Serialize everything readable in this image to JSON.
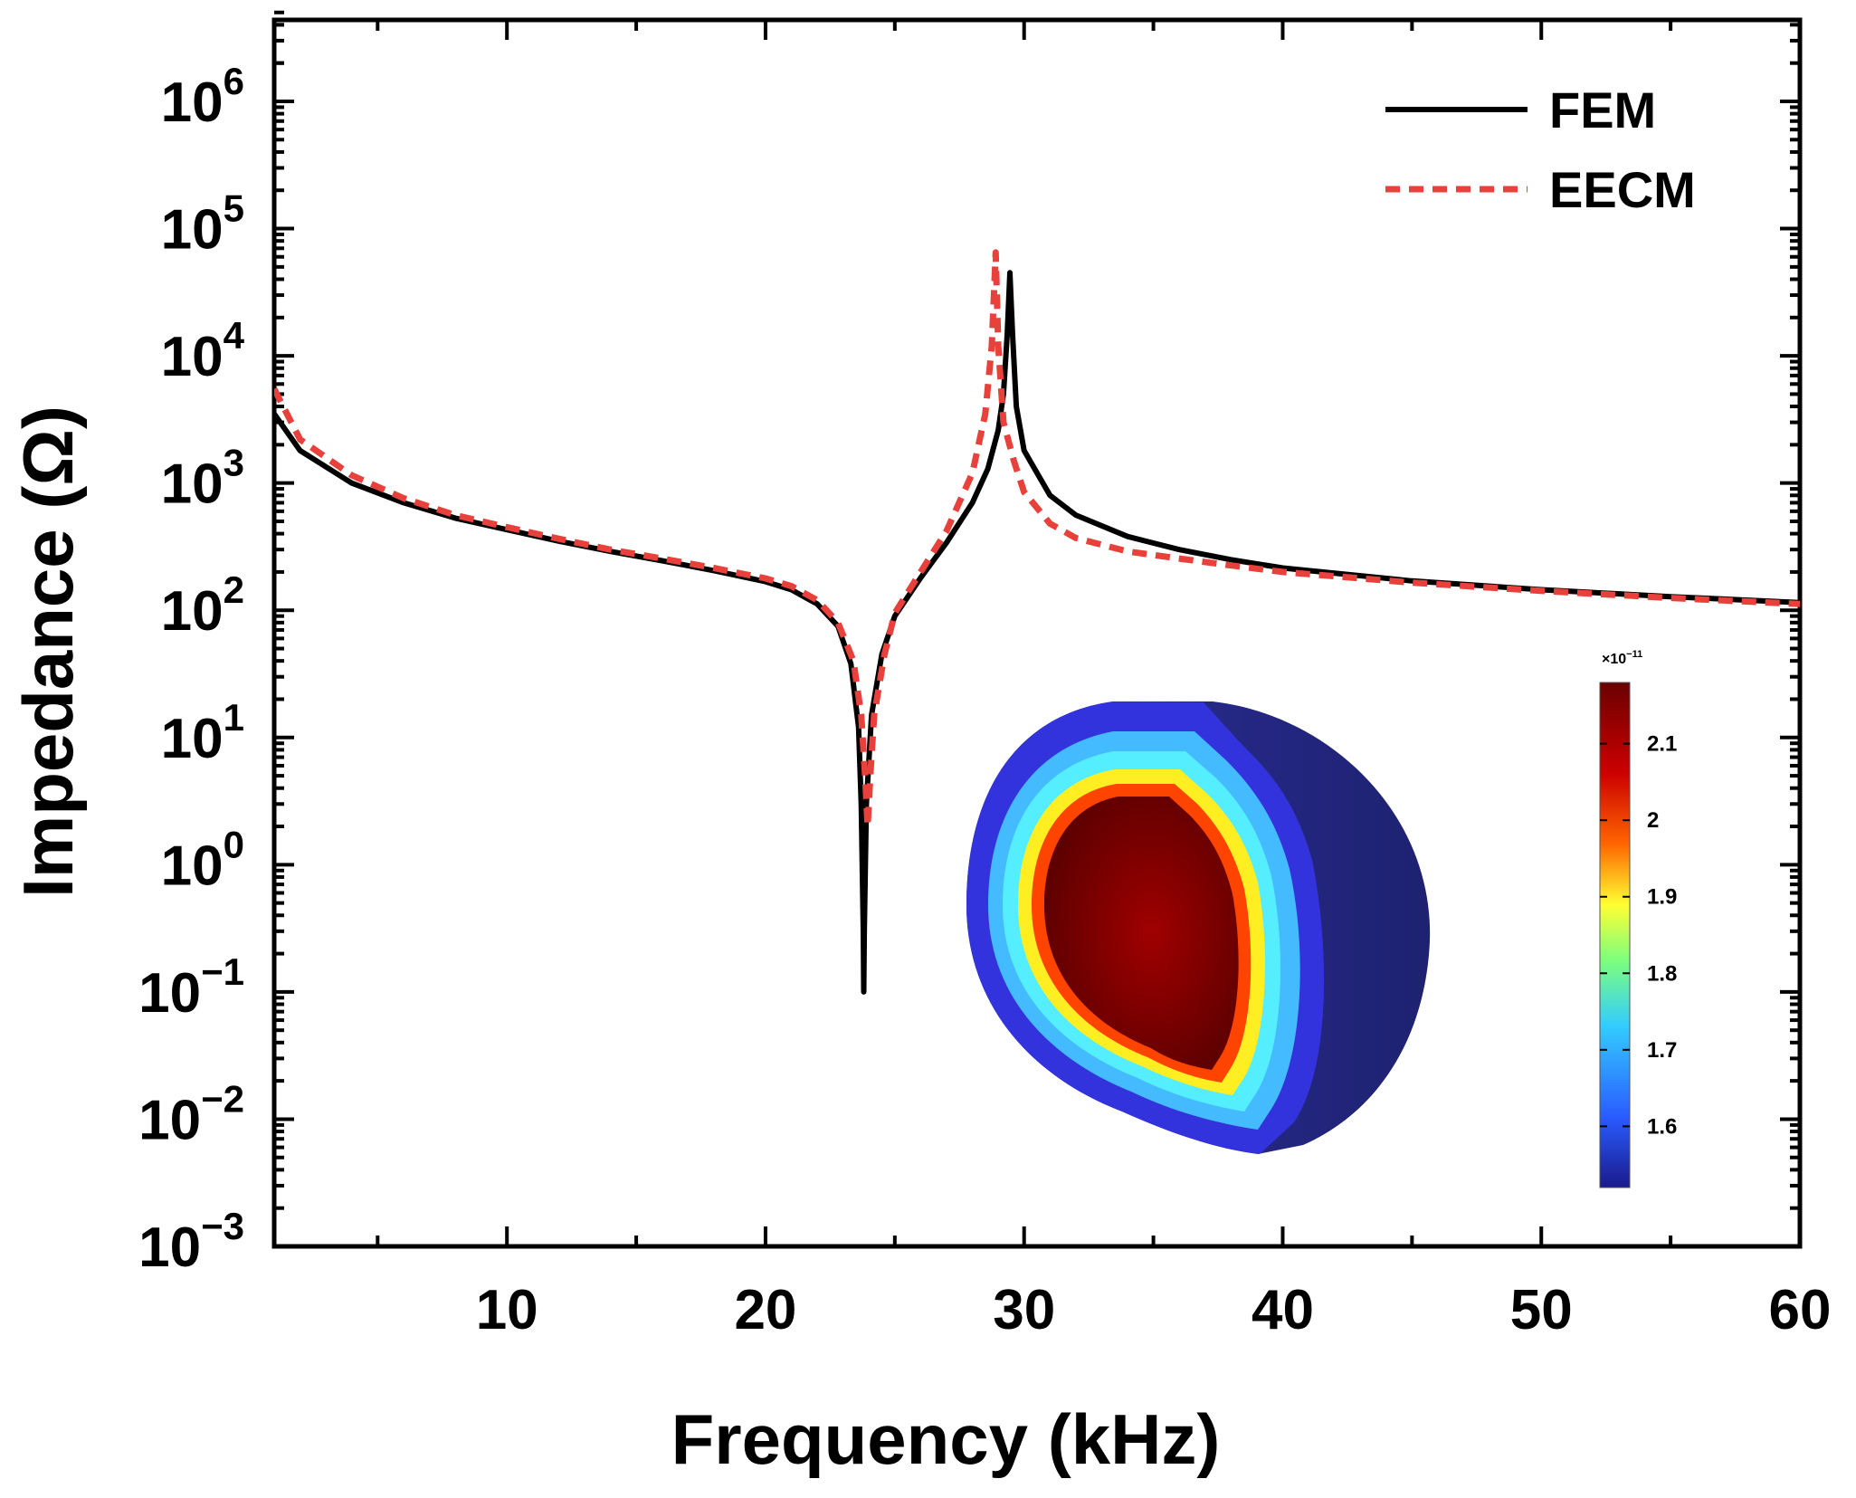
{
  "chart_data": {
    "type": "line",
    "xlabel": "Frequency (kHz)",
    "ylabel": "Impedance (Ω)",
    "xlim": [
      1,
      60
    ],
    "ylim": [
      0.001,
      5000000
    ],
    "y_scale": "log",
    "x_ticks": [
      10,
      20,
      30,
      40,
      50,
      60
    ],
    "y_ticks": [
      {
        "value": 0.001,
        "base": "10",
        "exp": "−3"
      },
      {
        "value": 0.01,
        "base": "10",
        "exp": "−2"
      },
      {
        "value": 0.1,
        "base": "10",
        "exp": "−1"
      },
      {
        "value": 1,
        "base": "10",
        "exp": "0"
      },
      {
        "value": 10,
        "base": "10",
        "exp": "1"
      },
      {
        "value": 100,
        "base": "10",
        "exp": "2"
      },
      {
        "value": 1000,
        "base": "10",
        "exp": "3"
      },
      {
        "value": 10000,
        "base": "10",
        "exp": "4"
      },
      {
        "value": 100000,
        "base": "10",
        "exp": "5"
      },
      {
        "value": 1000000,
        "base": "10",
        "exp": "6"
      }
    ],
    "legend_position": "top-right",
    "series": [
      {
        "name": "FEM",
        "color": "#000000",
        "style": "solid",
        "points": [
          [
            1,
            3500
          ],
          [
            2,
            1800
          ],
          [
            4,
            1000
          ],
          [
            6,
            700
          ],
          [
            8,
            530
          ],
          [
            10,
            430
          ],
          [
            12,
            350
          ],
          [
            14,
            290
          ],
          [
            16,
            245
          ],
          [
            18,
            205
          ],
          [
            20,
            168
          ],
          [
            21,
            145
          ],
          [
            22,
            112
          ],
          [
            22.8,
            75
          ],
          [
            23.3,
            38
          ],
          [
            23.6,
            12
          ],
          [
            23.7,
            3
          ],
          [
            23.78,
            0.3
          ],
          [
            23.8,
            0.1
          ],
          [
            23.82,
            0.3
          ],
          [
            23.9,
            3
          ],
          [
            24.1,
            15
          ],
          [
            24.5,
            45
          ],
          [
            25,
            90
          ],
          [
            26,
            180
          ],
          [
            27,
            340
          ],
          [
            28,
            700
          ],
          [
            28.6,
            1300
          ],
          [
            29,
            2600
          ],
          [
            29.2,
            5000
          ],
          [
            29.35,
            15000
          ],
          [
            29.45,
            45000
          ],
          [
            29.55,
            15000
          ],
          [
            29.7,
            4000
          ],
          [
            30,
            1800
          ],
          [
            31,
            800
          ],
          [
            32,
            560
          ],
          [
            34,
            380
          ],
          [
            36,
            300
          ],
          [
            38,
            250
          ],
          [
            40,
            215
          ],
          [
            45,
            170
          ],
          [
            50,
            145
          ],
          [
            55,
            128
          ],
          [
            60,
            115
          ]
        ]
      },
      {
        "name": "EECM",
        "color": "#e8403a",
        "style": "dashed",
        "points": [
          [
            1,
            5500
          ],
          [
            2,
            2200
          ],
          [
            4,
            1150
          ],
          [
            6,
            760
          ],
          [
            8,
            560
          ],
          [
            10,
            450
          ],
          [
            12,
            365
          ],
          [
            14,
            300
          ],
          [
            16,
            255
          ],
          [
            18,
            215
          ],
          [
            20,
            178
          ],
          [
            21,
            155
          ],
          [
            22,
            120
          ],
          [
            22.8,
            80
          ],
          [
            23.4,
            40
          ],
          [
            23.7,
            15
          ],
          [
            23.85,
            5
          ],
          [
            23.95,
            2
          ],
          [
            24.05,
            5
          ],
          [
            24.2,
            15
          ],
          [
            24.6,
            45
          ],
          [
            25,
            95
          ],
          [
            26,
            200
          ],
          [
            27,
            420
          ],
          [
            28,
            1200
          ],
          [
            28.5,
            3500
          ],
          [
            28.75,
            12000
          ],
          [
            28.9,
            65000
          ],
          [
            29.0,
            12000
          ],
          [
            29.2,
            3000
          ],
          [
            29.6,
            1500
          ],
          [
            30,
            850
          ],
          [
            31,
            480
          ],
          [
            32,
            370
          ],
          [
            34,
            290
          ],
          [
            36,
            255
          ],
          [
            38,
            225
          ],
          [
            40,
            200
          ],
          [
            45,
            165
          ],
          [
            50,
            142
          ],
          [
            55,
            125
          ],
          [
            60,
            112
          ]
        ]
      }
    ],
    "inset": {
      "colorbar_multiplier": "×10",
      "colorbar_multiplier_exp": "−11",
      "colorbar_ticks": [
        {
          "label": "2.1",
          "value": 2.1
        },
        {
          "label": "2",
          "value": 2.0
        },
        {
          "label": "1.9",
          "value": 1.9
        },
        {
          "label": "1.8",
          "value": 1.8
        },
        {
          "label": "1.7",
          "value": 1.7
        },
        {
          "label": "1.6",
          "value": 1.6
        }
      ],
      "colorbar_range": [
        1.52,
        2.18
      ],
      "colormap": [
        "#1a1a8c",
        "#2a5cff",
        "#33ccff",
        "#7dff7d",
        "#ffff33",
        "#ff6600",
        "#cc0000",
        "#6b0000"
      ]
    }
  }
}
